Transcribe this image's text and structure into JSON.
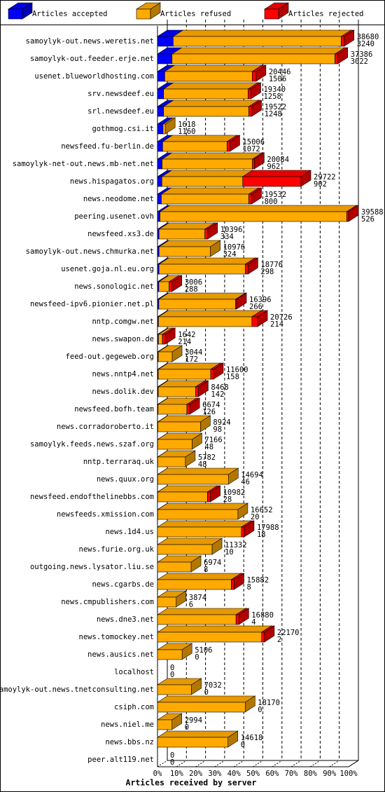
{
  "chart_data": {
    "type": "bar",
    "stacked": true,
    "orientation": "horizontal",
    "xlabel": "Articles received by server",
    "xlim": [
      0,
      100
    ],
    "xticks": [
      {
        "value": 0,
        "label": "0%"
      },
      {
        "value": 10,
        "label": "10%"
      },
      {
        "value": 20,
        "label": "20%"
      },
      {
        "value": 30,
        "label": "30%"
      },
      {
        "value": 40,
        "label": "40%"
      },
      {
        "value": 50,
        "label": "50%"
      },
      {
        "value": 60,
        "label": "60%"
      },
      {
        "value": 70,
        "label": "70%"
      },
      {
        "value": 80,
        "label": "80%"
      },
      {
        "value": 90,
        "label": "90%"
      },
      {
        "value": 100,
        "label": "100%"
      }
    ],
    "grid": true,
    "categories": [
      "samoylyk-out.news.weretis.net",
      "samoylyk-out.feeder.erje.net",
      "usenet.blueworldhosting.com",
      "srv.newsdeef.eu",
      "srl.newsdeef.eu",
      "gothmog.csi.it",
      "newsfeed.fu-berlin.de",
      "samoylyk-net-out.news.mb-net.net",
      "news.hispagatos.org",
      "news.neodome.net",
      "peering.usenet.ovh",
      "newsfeed.xs3.de",
      "samoylyk-out.news.chmurka.net",
      "usenet.goja.nl.eu.org",
      "news.sonologic.net",
      "newsfeed-ipv6.pionier.net.pl",
      "nntp.comgw.net",
      "news.swapon.de",
      "feed-out.gegeweb.org",
      "news.nntp4.net",
      "news.dolik.dev",
      "newsfeed.bofh.team",
      "news.corradoroberto.it",
      "samoylyk.feeds.news.szaf.org",
      "nntp.terraraq.uk",
      "news.quux.org",
      "newsfeed.endofthelinebbs.com",
      "newsfeeds.xmission.com",
      "news.1d4.us",
      "news.furie.org.uk",
      "outgoing.news.lysator.liu.se",
      "news.cgarbs.de",
      "news.cmpublishers.com",
      "news.dne3.net",
      "news.tomockey.net",
      "news.ausics.net",
      "localhost",
      "samoylyk-out.news.tnetconsulting.net",
      "csiph.com",
      "news.niel.me",
      "news.bbs.nz",
      "peer.alt119.net"
    ],
    "series": [
      {
        "name": "Articles accepted",
        "color": "#0000ff",
        "values": [
          8.2,
          7.6,
          3.8,
          3.2,
          3.2,
          2.9,
          2.7,
          2.4,
          2.3,
          2.0,
          1.3,
          0.8,
          0.8,
          0.8,
          0.7,
          0.7,
          0.5,
          0.5,
          0.4,
          0.4,
          0.4,
          0.3,
          0.2,
          0.1,
          0.1,
          0.1,
          0.1,
          0.1,
          0,
          0,
          0,
          0,
          0,
          0,
          0,
          0,
          0,
          0,
          0,
          0,
          0,
          0
        ]
      },
      {
        "name": "Articles refused",
        "color": "#ffaa00",
        "values": [
          88.0,
          85.3,
          45.8,
          44.2,
          44.6,
          1.2,
          33.7,
          47.3,
          42.3,
          45.8,
          97.7,
          24.0,
          26.9,
          45.1,
          5.4,
          40.2,
          48.9,
          2.1,
          7.3,
          27.4,
          19.5,
          15.1,
          22.3,
          18.0,
          14.5,
          37.0,
          26.1,
          42.0,
          43.9,
          28.6,
          17.6,
          38.6,
          9.8,
          41.1,
          54.5,
          12.9,
          0,
          17.8,
          45.9,
          7.6,
          36.9,
          0
        ]
      },
      {
        "name": "Articles rejected",
        "color": "#ff0000",
        "values": [
          1.5,
          1.5,
          2.0,
          1.5,
          1.5,
          0,
          1.5,
          1.0,
          30.5,
          1.5,
          1.0,
          1.5,
          0,
          1.5,
          1.5,
          0.5,
          3.0,
          1.5,
          0,
          1.5,
          1.5,
          1.5,
          0,
          0,
          0,
          0,
          1.5,
          0,
          1.5,
          0,
          0,
          1.5,
          0,
          1.5,
          1.5,
          0,
          0,
          0,
          0,
          0,
          0,
          0
        ]
      }
    ],
    "label_totals": [
      38680,
      37386,
      20446,
      19340,
      19522,
      1618,
      15006,
      20084,
      29722,
      19532,
      39588,
      10396,
      10976,
      18776,
      3006,
      16396,
      20726,
      1642,
      3044,
      11600,
      8468,
      6674,
      8924,
      7166,
      5782,
      14694,
      10982,
      16652,
      17988,
      11332,
      6974,
      15882,
      3874,
      16880,
      22170,
      5106,
      0,
      7032,
      18170,
      2994,
      14618,
      0
    ],
    "label_accepted": [
      3240,
      3022,
      1506,
      1258,
      1248,
      1160,
      1072,
      962,
      902,
      800,
      526,
      334,
      324,
      298,
      288,
      266,
      214,
      214,
      172,
      158,
      142,
      126,
      98,
      48,
      48,
      46,
      28,
      20,
      18,
      10,
      8,
      8,
      6,
      4,
      2,
      0,
      0,
      0,
      0,
      0,
      0,
      0
    ]
  }
}
